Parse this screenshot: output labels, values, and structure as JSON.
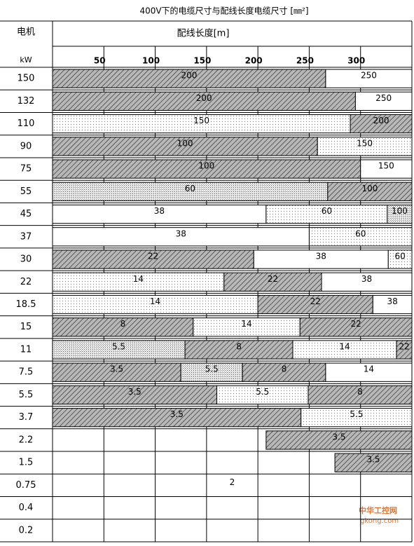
{
  "chart_data": {
    "type": "range-bar",
    "title": "400V下的电缆尺寸与配线长度电缆尺寸 [㎜²]",
    "row_header": "电机",
    "unit_header": "kW",
    "xlabel": "配线长度[m]",
    "xlim": [
      0,
      350
    ],
    "xticks": [
      50,
      100,
      150,
      200,
      250,
      300
    ],
    "grid": true,
    "categories": [
      "150",
      "132",
      "110",
      "90",
      "75",
      "55",
      "45",
      "37",
      "30",
      "22",
      "18.5",
      "15",
      "11",
      "7.5",
      "5.5",
      "3.7",
      "2.2",
      "1.5",
      "0.75",
      "0.4",
      "0.2"
    ],
    "segments": [
      [
        {
          "from": 0,
          "to": 266,
          "size": 200,
          "fill": "hatch"
        },
        {
          "from": 266,
          "to": 350,
          "size": 250,
          "fill": "white"
        }
      ],
      [
        {
          "from": 0,
          "to": 295,
          "size": 200,
          "fill": "hatch"
        },
        {
          "from": 295,
          "to": 350,
          "size": 250,
          "fill": "white"
        }
      ],
      [
        {
          "from": 0,
          "to": 290,
          "size": 150,
          "fill": "dots"
        },
        {
          "from": 290,
          "to": 350,
          "size": 200,
          "fill": "hatch"
        }
      ],
      [
        {
          "from": 0,
          "to": 258,
          "size": 100,
          "fill": "hatch"
        },
        {
          "from": 258,
          "to": 350,
          "size": 150,
          "fill": "dots"
        }
      ],
      [
        {
          "from": 0,
          "to": 300,
          "size": 100,
          "fill": "hatch"
        },
        {
          "from": 300,
          "to": 350,
          "size": 150,
          "fill": "white"
        }
      ],
      [
        {
          "from": 0,
          "to": 268,
          "size": 60,
          "fill": "grid"
        },
        {
          "from": 268,
          "to": 350,
          "size": 100,
          "fill": "hatch"
        }
      ],
      [
        {
          "from": 0,
          "to": 208,
          "size": 38,
          "fill": "white"
        },
        {
          "from": 208,
          "to": 326,
          "size": 60,
          "fill": "dots"
        },
        {
          "from": 326,
          "to": 350,
          "size": 100,
          "fill": "grid"
        }
      ],
      [
        {
          "from": 0,
          "to": 250,
          "size": 38,
          "fill": "white"
        },
        {
          "from": 250,
          "to": 350,
          "size": 60,
          "fill": "dots"
        }
      ],
      [
        {
          "from": 0,
          "to": 196,
          "size": 22,
          "fill": "hatch"
        },
        {
          "from": 196,
          "to": 327,
          "size": 38,
          "fill": "white"
        },
        {
          "from": 327,
          "to": 350,
          "size": 60,
          "fill": "dots"
        }
      ],
      [
        {
          "from": 0,
          "to": 167,
          "size": 14,
          "fill": "dots"
        },
        {
          "from": 167,
          "to": 262,
          "size": 22,
          "fill": "hatch"
        },
        {
          "from": 262,
          "to": 350,
          "size": 38,
          "fill": "white"
        }
      ],
      [
        {
          "from": 0,
          "to": 200,
          "size": 14,
          "fill": "dots"
        },
        {
          "from": 200,
          "to": 312,
          "size": 22,
          "fill": "hatch"
        },
        {
          "from": 312,
          "to": 350,
          "size": 38,
          "fill": "white"
        }
      ],
      [
        {
          "from": 0,
          "to": 137,
          "size": 8,
          "fill": "hatch"
        },
        {
          "from": 137,
          "to": 241,
          "size": 14,
          "fill": "dots"
        },
        {
          "from": 241,
          "to": 350,
          "size": 22,
          "fill": "hatch"
        }
      ],
      [
        {
          "from": 0,
          "to": 129,
          "size": 5.5,
          "fill": "grid"
        },
        {
          "from": 129,
          "to": 234,
          "size": 8,
          "fill": "hatch"
        },
        {
          "from": 234,
          "to": 335,
          "size": 14,
          "fill": "dots"
        },
        {
          "from": 335,
          "to": 350,
          "size": 22,
          "fill": "hatch"
        }
      ],
      [
        {
          "from": 0,
          "to": 125,
          "size": 3.5,
          "fill": "hatch"
        },
        {
          "from": 125,
          "to": 185,
          "size": 5.5,
          "fill": "grid"
        },
        {
          "from": 185,
          "to": 266,
          "size": 8,
          "fill": "hatch"
        },
        {
          "from": 266,
          "to": 350,
          "size": 14,
          "fill": "white"
        }
      ],
      [
        {
          "from": 0,
          "to": 160,
          "size": 3.5,
          "fill": "hatch"
        },
        {
          "from": 160,
          "to": 249,
          "size": 5.5,
          "fill": "dots"
        },
        {
          "from": 249,
          "to": 350,
          "size": 8,
          "fill": "hatch"
        }
      ],
      [
        {
          "from": 0,
          "to": 242,
          "size": 3.5,
          "fill": "hatch"
        },
        {
          "from": 242,
          "to": 350,
          "size": 5.5,
          "fill": "dots"
        }
      ],
      [
        {
          "from": 208,
          "to": 350,
          "size": 3.5,
          "fill": "hatch"
        }
      ],
      [
        {
          "from": 275,
          "to": 350,
          "size": 3.5,
          "fill": "hatch"
        }
      ],
      [
        {
          "from": 0,
          "to": 350,
          "size": 2,
          "fill": "none"
        }
      ],
      [],
      []
    ],
    "watermark": [
      "中华工控网",
      "gkong.com"
    ]
  }
}
